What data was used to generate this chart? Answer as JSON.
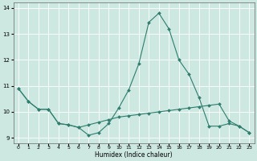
{
  "title": "",
  "xlabel": "Humidex (Indice chaleur)",
  "ylabel": "",
  "bg_color": "#cce8e0",
  "grid_color": "#ffffff",
  "line_color": "#2e7d6e",
  "xlim": [
    -0.5,
    23.5
  ],
  "ylim": [
    8.8,
    14.2
  ],
  "yticks": [
    9,
    10,
    11,
    12,
    13,
    14
  ],
  "xticks": [
    0,
    1,
    2,
    3,
    4,
    5,
    6,
    7,
    8,
    9,
    10,
    11,
    12,
    13,
    14,
    15,
    16,
    17,
    18,
    19,
    20,
    21,
    22,
    23
  ],
  "line1_x": [
    0,
    1,
    2,
    3,
    4,
    5,
    6,
    7,
    8,
    9,
    10,
    11,
    12,
    13,
    14,
    15,
    16,
    17,
    18,
    19,
    20,
    21,
    22,
    23
  ],
  "line1_y": [
    10.9,
    10.4,
    10.1,
    10.1,
    9.55,
    9.5,
    9.4,
    9.1,
    9.2,
    9.55,
    10.15,
    10.85,
    11.85,
    13.45,
    13.8,
    13.2,
    12.0,
    11.45,
    10.55,
    9.45,
    9.45,
    9.55,
    9.45,
    9.2
  ],
  "line2_x": [
    0,
    1,
    2,
    3,
    4,
    5,
    6,
    7,
    8,
    9,
    10,
    11,
    12,
    13,
    14,
    15,
    16,
    17,
    18,
    19,
    20,
    21,
    22,
    23
  ],
  "line2_y": [
    10.9,
    10.4,
    10.1,
    10.1,
    9.55,
    9.5,
    9.4,
    9.5,
    9.6,
    9.7,
    9.8,
    9.85,
    9.9,
    9.95,
    10.0,
    10.05,
    10.1,
    10.15,
    10.2,
    10.25,
    10.3,
    9.65,
    9.45,
    9.2
  ]
}
